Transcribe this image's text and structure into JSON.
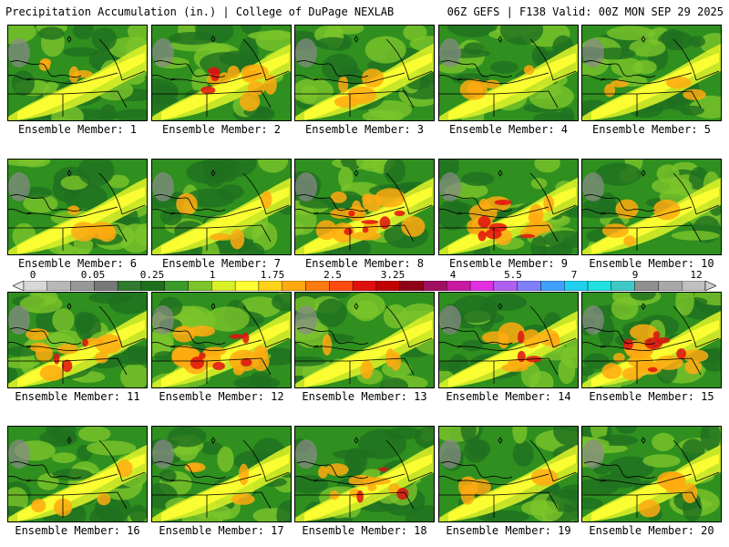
{
  "header": {
    "title": "Precipitation Accumulation (in.) | College of DuPage NEXLAB",
    "run_info": "06Z GEFS | F138 Valid: 00Z MON SEP 29 2025"
  },
  "members": [
    {
      "label": "Ensemble Member: 1",
      "intensity": 1
    },
    {
      "label": "Ensemble Member: 2",
      "intensity": 2
    },
    {
      "label": "Ensemble Member: 3",
      "intensity": 1
    },
    {
      "label": "Ensemble Member: 4",
      "intensity": 1
    },
    {
      "label": "Ensemble Member: 5",
      "intensity": 1
    },
    {
      "label": "Ensemble Member: 6",
      "intensity": 1
    },
    {
      "label": "Ensemble Member: 7",
      "intensity": 1
    },
    {
      "label": "Ensemble Member: 8",
      "intensity": 3
    },
    {
      "label": "Ensemble Member: 9",
      "intensity": 3
    },
    {
      "label": "Ensemble Member: 10",
      "intensity": 1
    },
    {
      "label": "Ensemble Member: 11",
      "intensity": 2
    },
    {
      "label": "Ensemble Member: 12",
      "intensity": 3
    },
    {
      "label": "Ensemble Member: 13",
      "intensity": 1
    },
    {
      "label": "Ensemble Member: 14",
      "intensity": 2
    },
    {
      "label": "Ensemble Member: 15",
      "intensity": 3
    },
    {
      "label": "Ensemble Member: 16",
      "intensity": 1
    },
    {
      "label": "Ensemble Member: 17",
      "intensity": 1
    },
    {
      "label": "Ensemble Member: 18",
      "intensity": 2
    },
    {
      "label": "Ensemble Member: 19",
      "intensity": 1
    },
    {
      "label": "Ensemble Member: 20",
      "intensity": 1
    }
  ],
  "legend": {
    "tick_labels": [
      "0",
      "0.05",
      "0.25",
      "1",
      "1.75",
      "2.5",
      "3.25",
      "4",
      "5.5",
      "7",
      "9",
      "12"
    ],
    "colors": [
      "#d8d8d8",
      "#b8b8b8",
      "#989898",
      "#787878",
      "#2f7a2f",
      "#1f6f1f",
      "#3a9a2a",
      "#7cc42a",
      "#d8f028",
      "#ffff33",
      "#ffd21a",
      "#ffaa10",
      "#ff7a10",
      "#ff4a10",
      "#e01010",
      "#c00000",
      "#900018",
      "#a01060",
      "#c81aa0",
      "#e030e0",
      "#b060f0",
      "#8080ff",
      "#40a0ff",
      "#20d0f0",
      "#20e0e0",
      "#40c8c8",
      "#909090",
      "#a8a8a8",
      "#c0c0c0"
    ]
  }
}
